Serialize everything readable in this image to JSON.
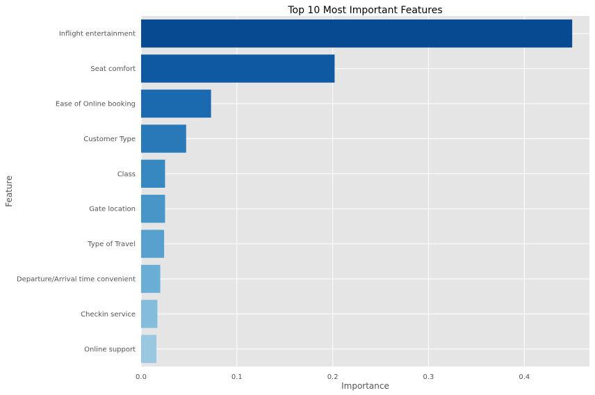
{
  "chart_data": {
    "type": "bar",
    "orientation": "horizontal",
    "title": "Top 10 Most Important Features",
    "xlabel": "Importance",
    "ylabel": "Feature",
    "xlim": [
      0,
      0.468
    ],
    "xticks": [
      0,
      0.1,
      0.2,
      0.3,
      0.4
    ],
    "xtick_labels": [
      "0.0",
      "0.1",
      "0.2",
      "0.3",
      "0.4"
    ],
    "grid": true,
    "categories": [
      "Inflight entertainment",
      "Seat comfort",
      "Ease of Online booking",
      "Customer Type",
      "Class",
      "Gate location",
      "Type of Travel",
      "Departure/Arrival time convenient",
      "Checkin service",
      "Online support"
    ],
    "values": [
      0.45,
      0.202,
      0.073,
      0.047,
      0.025,
      0.025,
      0.024,
      0.02,
      0.017,
      0.016
    ],
    "colors": [
      "#084a91",
      "#0f59a3",
      "#1b69af",
      "#2979b9",
      "#3787c0",
      "#4896c8",
      "#58a1cf",
      "#6aaed6",
      "#84bcdb",
      "#9ac8e0"
    ],
    "background": "#e5e5e5",
    "grid_color": "#ffffff"
  }
}
